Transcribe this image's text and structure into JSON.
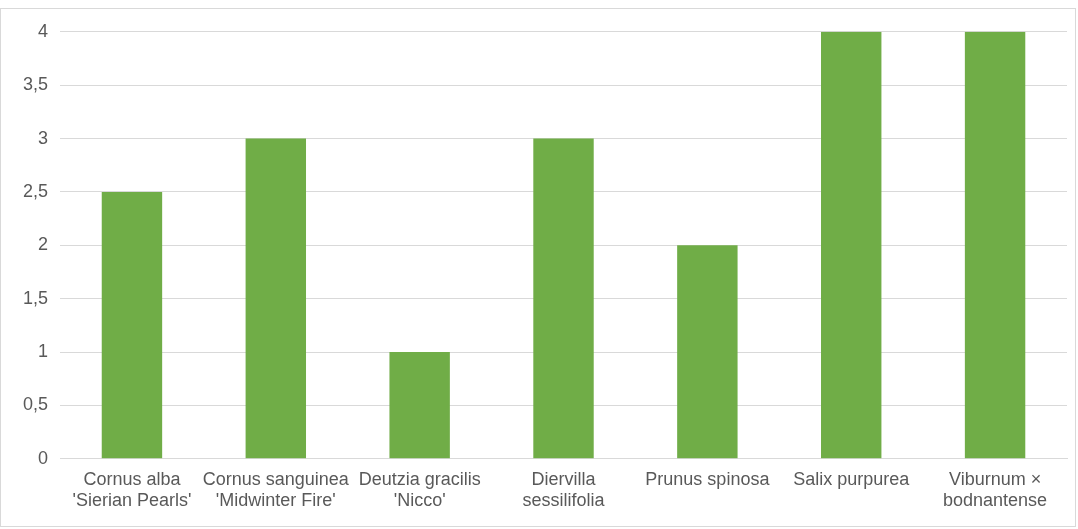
{
  "chart_data": {
    "type": "bar",
    "categories": [
      "Cornus alba 'Sierian Pearls'",
      "Cornus sanguinea 'Midwinter Fire'",
      "Deutzia gracilis 'Nicco'",
      "Diervilla sessilifolia",
      "Prunus spinosa",
      "Salix purpurea",
      "Viburnum × bodnantense"
    ],
    "values": [
      2.5,
      3,
      1,
      3,
      2,
      4,
      4
    ],
    "color": "#70ad47",
    "ylim": [
      0,
      4
    ],
    "yticks": [
      0,
      {
        "value": 0.5,
        "label": "0,5"
      },
      1,
      {
        "value": 1.5,
        "label": "1,5"
      },
      2,
      {
        "value": 2.5,
        "label": "2,5"
      },
      3,
      {
        "value": 3.5,
        "label": "3,5"
      },
      4
    ],
    "grid": "y",
    "legend": false
  }
}
